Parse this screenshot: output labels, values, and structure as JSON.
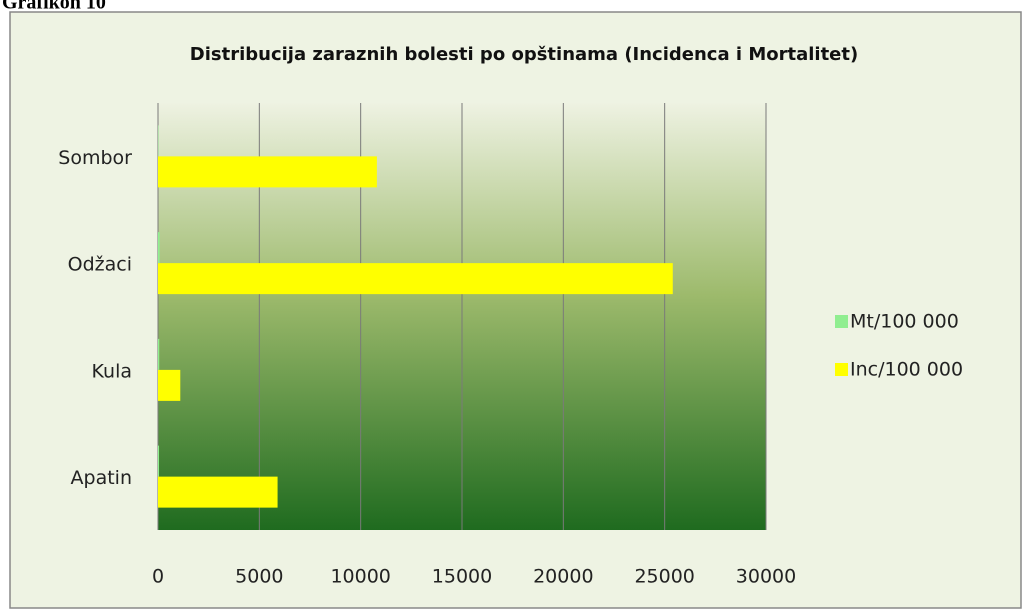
{
  "caption": "Grafikon 10",
  "chart_data": {
    "type": "barh",
    "title": "Distribucija zaraznih bolesti po opštinama (Incidenca i Mortalitet)",
    "categories": [
      "Apatin",
      "Kula",
      "Odžaci",
      "Sombor"
    ],
    "series": [
      {
        "name": "Mt/100 000",
        "color": "#90ee90",
        "values": [
          50,
          60,
          80,
          20
        ]
      },
      {
        "name": "Inc/100 000",
        "color": "#ffff00",
        "values": [
          5900,
          1100,
          25400,
          10800
        ]
      }
    ],
    "xlim": [
      0,
      30000
    ],
    "xticks": [
      0,
      5000,
      10000,
      15000,
      20000,
      25000,
      30000
    ],
    "grid": true,
    "legend": "right"
  }
}
